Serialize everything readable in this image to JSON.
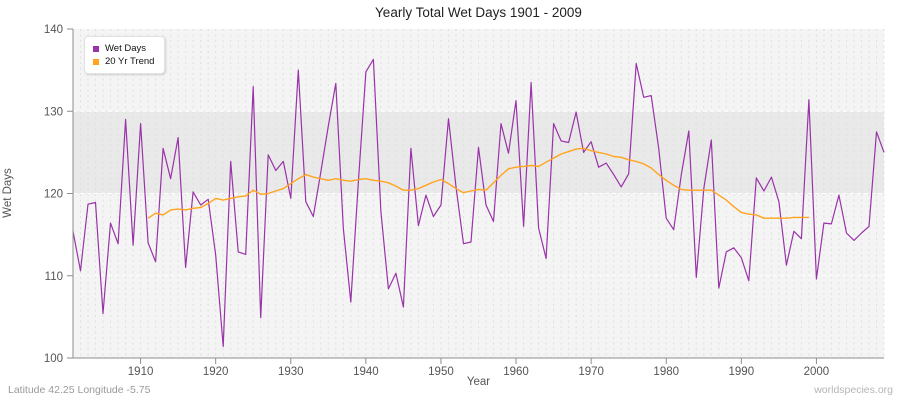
{
  "title": "Yearly Total Wet Days 1901 - 2009",
  "footer": {
    "left": "Latitude 42.25 Longitude -5.75",
    "right": "worldspecies.org"
  },
  "colors": {
    "wet_days_line": "#9933a8",
    "trend_line": "#ffa41e",
    "plot_bg_light": "#f4f4f4",
    "plot_band_gray": "#e9e9e9",
    "axis": "#8c8c8c",
    "tick_label": "#555555",
    "v_gridline": "#dfdfdf",
    "h_gridline": "#ffffff"
  },
  "chart_data": {
    "type": "line",
    "title": "Yearly Total Wet Days 1901 - 2009",
    "xlabel": "Year",
    "ylabel": "Wet Days",
    "xlim": [
      1901,
      2009
    ],
    "ylim": [
      100,
      140
    ],
    "x_ticks": [
      1910,
      1920,
      1930,
      1940,
      1950,
      1960,
      1970,
      1980,
      1990,
      2000
    ],
    "y_ticks": [
      100,
      110,
      120,
      130,
      140
    ],
    "h_gridlines": [
      110,
      120,
      130
    ],
    "grid": "vertical dotted per year, horizontal white dashed",
    "legend_position": "top-left",
    "bands": [
      {
        "from": 100,
        "to": 140,
        "color": "#f4f4f4"
      },
      {
        "from": 120,
        "to": 130,
        "color": "#e9e9e9"
      }
    ],
    "series": [
      {
        "name": "Wet Days",
        "color": "#9933a8",
        "x_start": 1901,
        "values": [
          115.4,
          110.6,
          118.7,
          118.9,
          105.4,
          116.4,
          113.9,
          129.0,
          113.7,
          128.5,
          114.0,
          111.7,
          125.5,
          121.8,
          126.8,
          111.0,
          120.2,
          118.6,
          119.3,
          112.5,
          101.4,
          123.9,
          112.9,
          112.6,
          133.0,
          104.9,
          124.7,
          122.8,
          123.9,
          119.4,
          135.0,
          119.0,
          117.2,
          122.6,
          128.2,
          133.4,
          115.8,
          106.8,
          121.5,
          134.8,
          136.3,
          117.8,
          108.4,
          110.3,
          106.2,
          125.5,
          116.1,
          119.8,
          117.2,
          118.6,
          129.1,
          120.8,
          113.9,
          114.1,
          125.6,
          118.6,
          116.6,
          128.5,
          124.9,
          131.3,
          116.0,
          133.5,
          115.8,
          112.1,
          128.5,
          126.4,
          126.2,
          129.9,
          125.0,
          126.3,
          123.2,
          123.7,
          122.3,
          120.8,
          122.4,
          135.8,
          131.7,
          131.9,
          125.5,
          117.0,
          115.6,
          122.3,
          127.6,
          109.8,
          120.6,
          126.5,
          108.5,
          112.9,
          113.4,
          112.2,
          109.4,
          121.9,
          120.3,
          122.0,
          119.0,
          111.3,
          115.4,
          114.5,
          131.4,
          109.6,
          116.4,
          116.3,
          119.8,
          115.2,
          114.3,
          115.2,
          116.0,
          127.5,
          125.0
        ]
      },
      {
        "name": "20 Yr Trend",
        "color": "#ffa41e",
        "x_start": 1911,
        "values": [
          117.0,
          117.6,
          117.4,
          118.0,
          118.1,
          118.0,
          118.2,
          118.3,
          118.8,
          119.4,
          119.2,
          119.4,
          119.6,
          119.7,
          120.4,
          119.9,
          120.0,
          120.3,
          120.6,
          121.2,
          121.8,
          122.3,
          122.0,
          121.8,
          121.6,
          121.8,
          121.6,
          121.5,
          121.7,
          121.8,
          121.6,
          121.5,
          121.3,
          120.9,
          120.4,
          120.4,
          120.6,
          121.0,
          121.4,
          121.7,
          121.2,
          120.6,
          120.1,
          120.3,
          120.5,
          120.4,
          121.3,
          122.2,
          123.0,
          123.2,
          123.3,
          123.4,
          123.3,
          123.8,
          124.3,
          124.8,
          125.1,
          125.4,
          125.5,
          125.2,
          125.0,
          124.8,
          124.5,
          124.4,
          124.1,
          123.9,
          123.6,
          123.1,
          122.3,
          121.6,
          121.0,
          120.5,
          120.4,
          120.4,
          120.4,
          120.4,
          119.8,
          119.2,
          118.4,
          117.7,
          117.5,
          117.4,
          117.0,
          117.0,
          117.0,
          117.0,
          117.1,
          117.1,
          117.1
        ]
      }
    ]
  },
  "legend": {
    "item1": "Wet Days",
    "item2": "20 Yr Trend"
  },
  "axes": {
    "y_title": "Wet Days",
    "x_title": "Year"
  }
}
